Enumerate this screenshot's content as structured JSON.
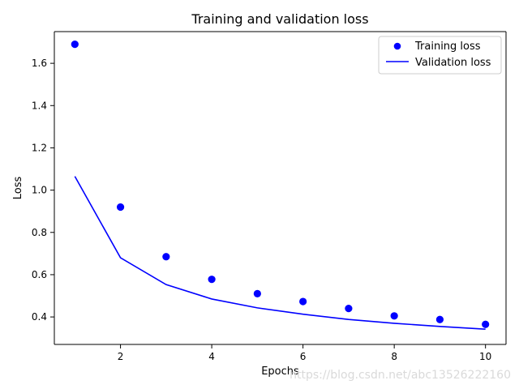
{
  "chart_data": {
    "type": "line",
    "title": "Training and validation loss",
    "xlabel": "Epochs",
    "ylabel": "Loss",
    "x": [
      1,
      2,
      3,
      4,
      5,
      6,
      7,
      8,
      9,
      10
    ],
    "xlim": [
      0.55,
      10.45
    ],
    "ylim": [
      0.27,
      1.75
    ],
    "xticks": [
      2,
      4,
      6,
      8,
      10
    ],
    "yticks": [
      0.4,
      0.6,
      0.8,
      1.0,
      1.2,
      1.4,
      1.6
    ],
    "grid": false,
    "legend_position": "top-right",
    "series": [
      {
        "name": "Training loss",
        "style": "markers",
        "color": "#0000ff",
        "values": [
          1.69,
          0.92,
          0.685,
          0.578,
          0.51,
          0.473,
          0.44,
          0.405,
          0.388,
          0.365
        ]
      },
      {
        "name": "Validation loss",
        "style": "line",
        "color": "#0000ff",
        "values": [
          1.065,
          0.68,
          0.553,
          0.485,
          0.443,
          0.413,
          0.388,
          0.37,
          0.355,
          0.342
        ]
      }
    ]
  },
  "watermark": "https://blog.csdn.net/abc13526222160"
}
